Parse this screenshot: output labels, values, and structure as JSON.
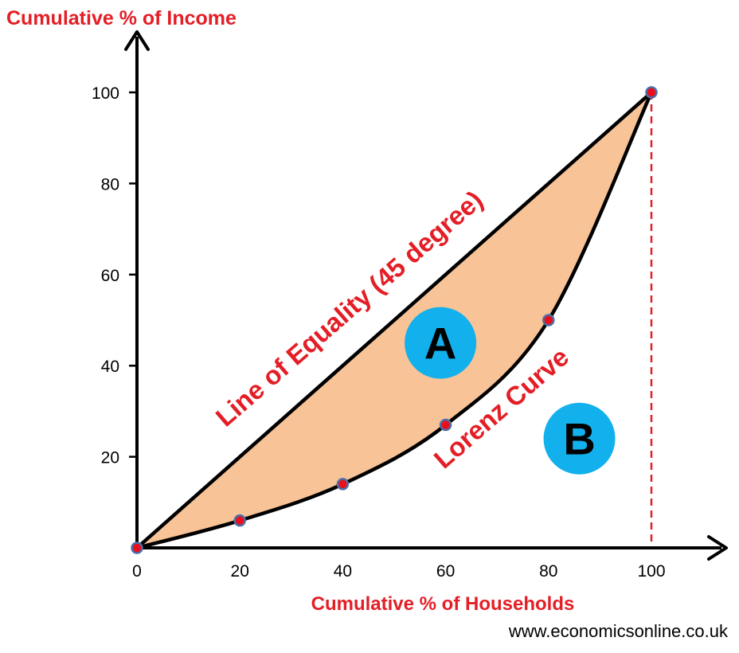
{
  "chart_data": {
    "type": "line",
    "ylabel": "Cumulative % of Income",
    "xlabel": "Cumulative % of Households",
    "xlim": [
      0,
      100
    ],
    "ylim": [
      0,
      100
    ],
    "x_ticks": [
      "0",
      "20",
      "40",
      "60",
      "80",
      "100"
    ],
    "y_ticks": [
      "20",
      "40",
      "60",
      "80",
      "100"
    ],
    "series": [
      {
        "name": "Line of Equality (45 degree)",
        "points": [
          [
            0,
            0
          ],
          [
            100,
            100
          ]
        ]
      },
      {
        "name": "Lorenz Curve",
        "points": [
          [
            0,
            0
          ],
          [
            20,
            6
          ],
          [
            40,
            14
          ],
          [
            60,
            27
          ],
          [
            80,
            50
          ],
          [
            100,
            100
          ]
        ]
      }
    ],
    "regions": [
      "A",
      "B"
    ],
    "colors": {
      "fill_between": "#f7c397",
      "point": "#e8101c",
      "point_outline": "#4d6ea7",
      "label_red": "#e41e26",
      "region_circle": "#12b0ec",
      "dashed_guide": "#e41e26"
    }
  },
  "footer": {
    "website": "www.economicsonline.co.uk"
  }
}
